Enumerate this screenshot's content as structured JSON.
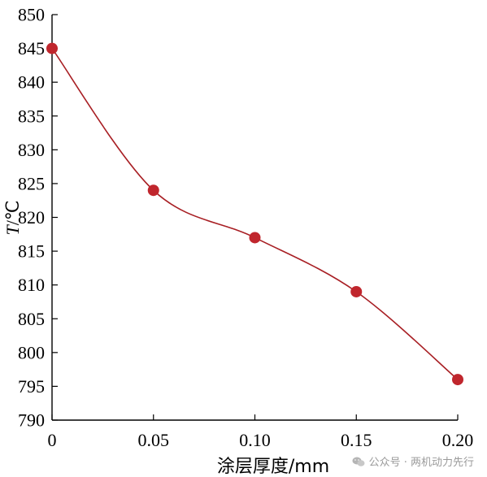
{
  "chart_data": {
    "type": "line",
    "x": [
      0,
      0.05,
      0.1,
      0.15,
      0.2
    ],
    "values": [
      845,
      824,
      817,
      809,
      796
    ],
    "xticks": [
      "0",
      "0.05",
      "0.10",
      "0.15",
      "0.20"
    ],
    "yticks": [
      "790",
      "795",
      "800",
      "805",
      "810",
      "815",
      "820",
      "825",
      "830",
      "835",
      "840",
      "845",
      "850"
    ],
    "xlabel": "涂层厚度/mm",
    "ylabel_italic": "T",
    "ylabel_rest": "/℃",
    "xlim": [
      0,
      0.2
    ],
    "ylim": [
      790,
      850
    ],
    "grid": false,
    "smooth": true,
    "line_color": "#a81f24",
    "marker_color": "#c0262d"
  },
  "watermark": {
    "text": "公众号 · 两机动力先行",
    "icon": "wechat-icon"
  }
}
